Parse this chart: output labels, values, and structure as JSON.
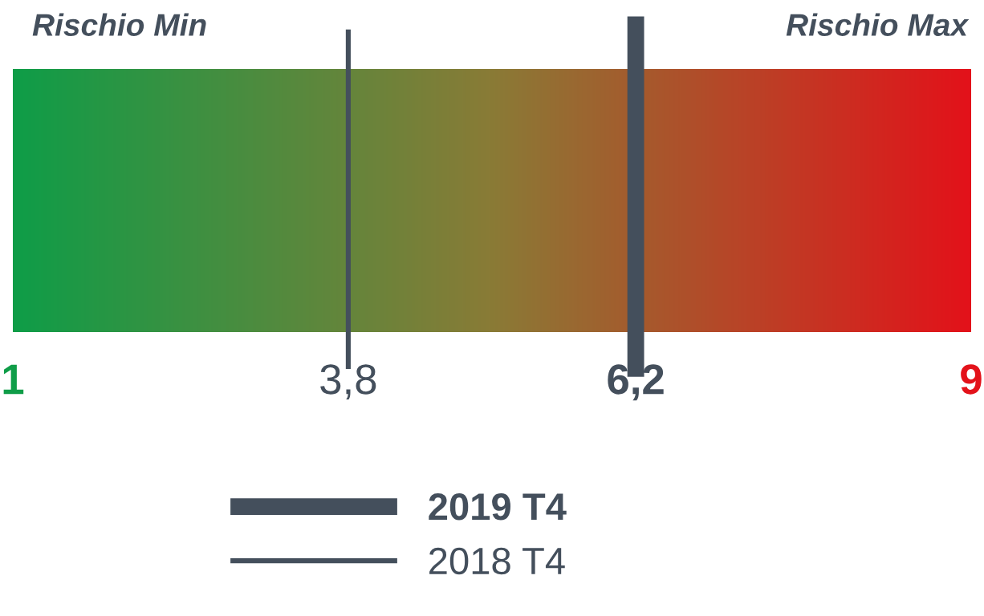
{
  "chart_data": {
    "type": "bar",
    "orientation": "horizontal",
    "categories": [
      null
    ],
    "base": [
      1
    ],
    "values": [
      8
    ],
    "xlim": [
      1,
      9
    ],
    "xticks": [
      1,
      {
        "value": 3.8,
        "label": "3,8"
      },
      {
        "value": 6.2,
        "label": "6,2"
      },
      9
    ],
    "ref_lines": [
      {
        "axis": "x",
        "value": 6.2,
        "label": "2019 T4",
        "color": "#444f5c"
      },
      {
        "axis": "x",
        "value": 3.8,
        "label": "2018 T4",
        "color": "#444f5c"
      }
    ],
    "annotations": [
      "Rischio Min",
      "Rischio Max"
    ],
    "legend": "bottom"
  }
}
